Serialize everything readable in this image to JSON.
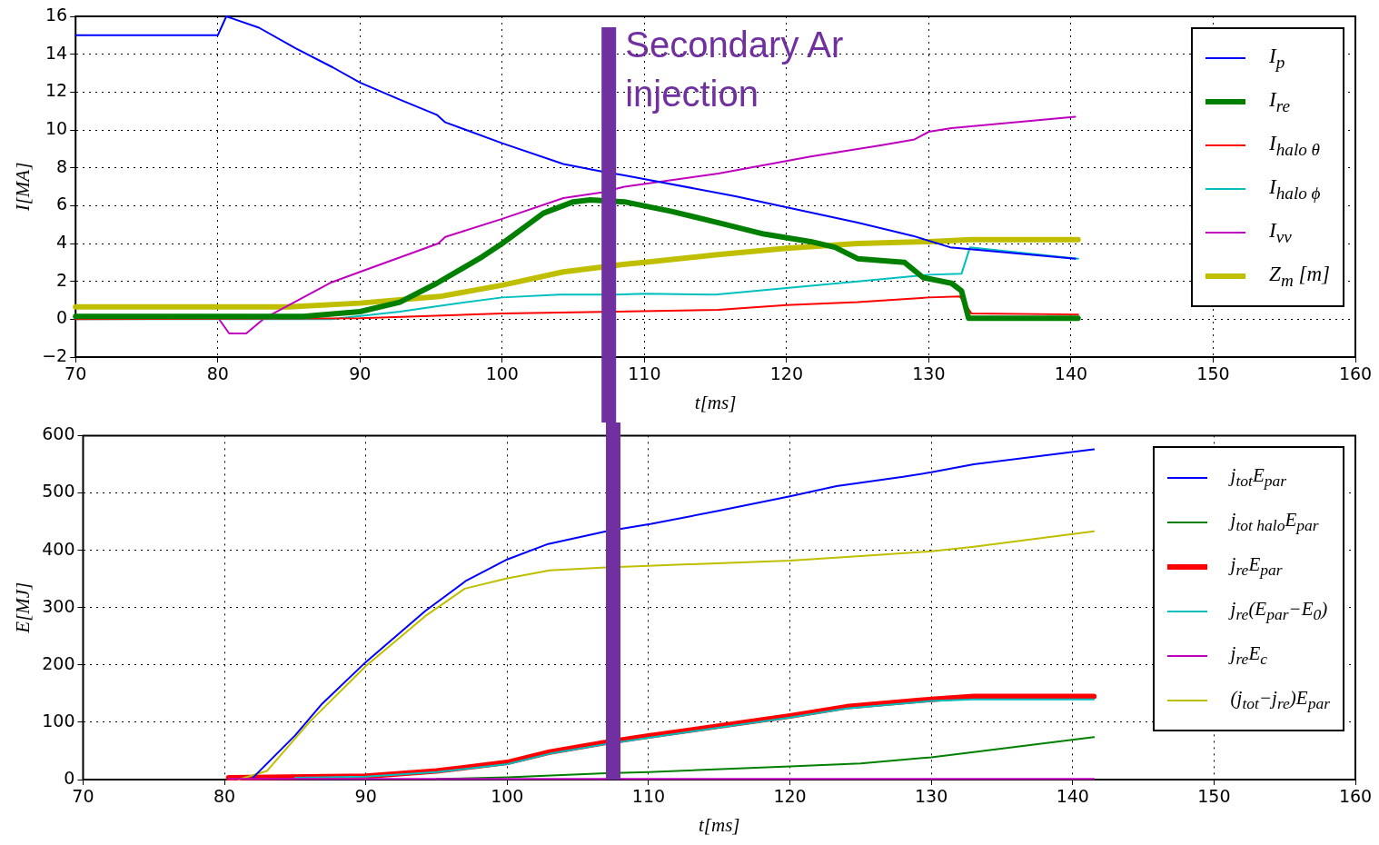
{
  "chart_data": [
    {
      "type": "line",
      "xlabel": "t[ms]",
      "ylabel": "I[MA]",
      "xlim": [
        70,
        160
      ],
      "ylim": [
        -2,
        16
      ],
      "xticks": [
        70,
        80,
        90,
        100,
        110,
        120,
        130,
        140,
        150,
        160
      ],
      "yticks": [
        {
          "value": -2,
          "label": "−2"
        },
        0,
        2,
        4,
        6,
        8,
        10,
        12,
        14,
        16
      ],
      "grid": true,
      "legend": "top right",
      "marker": "none",
      "line_style": "solid",
      "ref_lines": [
        {
          "axis": "x",
          "value": 107.5,
          "label": "Secondary Ar injection",
          "color": "#7030a0"
        }
      ],
      "series": [
        {
          "name": "I$_{p}$",
          "color": "#0000ff",
          "x": [
            70,
            80,
            80.6,
            82.9,
            85.5,
            88.1,
            90,
            92.8,
            95.4,
            96,
            100,
            104.3,
            107,
            108.6,
            116.4,
            125,
            128.9,
            131.5,
            140.3
          ],
          "values": [
            15,
            15,
            16,
            15.4,
            14.3,
            13.3,
            12.5,
            11.6,
            10.8,
            10.4,
            9.3,
            8.2,
            7.8,
            7.6,
            6.5,
            5.1,
            4.4,
            3.8,
            3.2
          ]
        },
        {
          "name": "I$_{re}$",
          "color": "#007f00",
          "x": [
            70,
            86,
            90,
            92.8,
            95.4,
            98.6,
            100,
            102.9,
            105,
            106.2,
            108.6,
            111.9,
            115.2,
            118.4,
            121.7,
            123.4,
            125,
            128.3,
            129.6,
            131.6,
            132.3,
            132.8,
            140.5
          ],
          "values": [
            0.15,
            0.15,
            0.4,
            0.9,
            1.9,
            3.3,
            4,
            5.6,
            6.2,
            6.3,
            6.2,
            5.7,
            5.1,
            4.5,
            4.1,
            3.8,
            3.2,
            3,
            2.2,
            1.9,
            1.5,
            0.05,
            0.05
          ]
        },
        {
          "name": "I$_{halo θ}$",
          "color": "#ff0000",
          "x": [
            70,
            90,
            100,
            108,
            115.2,
            120,
            125,
            130,
            132.2,
            133,
            140.5
          ],
          "values": [
            0,
            0.05,
            0.3,
            0.4,
            0.5,
            0.75,
            0.9,
            1.15,
            1.2,
            0.3,
            0.25
          ]
        },
        {
          "name": "I$_{halo ϕ}$",
          "color": "#00bfbf",
          "x": [
            70,
            88,
            92.8,
            96,
            100,
            104,
            108,
            110,
            115,
            120,
            125,
            130,
            132.3,
            132.9,
            140.5
          ],
          "values": [
            0,
            0,
            0.4,
            0.75,
            1.15,
            1.3,
            1.3,
            1.35,
            1.3,
            1.65,
            2,
            2.35,
            2.4,
            3.8,
            3.2
          ]
        },
        {
          "name": "I$_{vv}$",
          "color": "#bf00bf",
          "x": [
            80,
            80.8,
            82,
            83.3,
            88,
            90,
            95.5,
            96,
            100,
            104.3,
            107,
            108.6,
            115.2,
            121.7,
            126.7,
            129,
            130,
            131.6,
            140.3
          ],
          "values": [
            0.1,
            -0.75,
            -0.75,
            0.06,
            1.95,
            2.5,
            4,
            4.35,
            5.3,
            6.4,
            6.7,
            7,
            7.7,
            8.6,
            9.2,
            9.5,
            9.9,
            10.1,
            10.7
          ]
        },
        {
          "name": "Z$_{m}$ [m]",
          "color": "#bfbf00",
          "x": [
            70,
            85,
            90,
            95.6,
            100,
            104.3,
            108.5,
            110,
            115,
            120,
            125,
            130,
            133,
            140.5
          ],
          "values": [
            0.65,
            0.65,
            0.85,
            1.2,
            1.8,
            2.5,
            2.9,
            3,
            3.4,
            3.75,
            4,
            4.1,
            4.2,
            4.2
          ]
        }
      ]
    },
    {
      "type": "line",
      "xlabel": "t[ms]",
      "ylabel": "E[MJ]",
      "xlim": [
        70,
        160
      ],
      "ylim": [
        0,
        600
      ],
      "xticks": [
        70,
        80,
        90,
        100,
        110,
        120,
        130,
        140,
        150,
        160
      ],
      "yticks": [
        0,
        100,
        200,
        300,
        400,
        500,
        600
      ],
      "grid": true,
      "legend": "top right",
      "marker": "none",
      "line_style": "solid",
      "ref_lines": [
        {
          "axis": "x",
          "value": 107.5,
          "color": "#7030a0"
        }
      ],
      "series": [
        {
          "name": "j$_{tot}$E$_{par}$",
          "color": "#0000ff",
          "x": [
            82,
            85,
            86.9,
            90,
            94.2,
            97.1,
            100,
            102.9,
            107,
            110.2,
            115,
            120,
            123.3,
            128,
            130,
            133,
            141.5
          ],
          "values": [
            3,
            77,
            132,
            205,
            294,
            347,
            384,
            411,
            433,
            446,
            469,
            494,
            512,
            528,
            536,
            550,
            576
          ]
        },
        {
          "name": "j$_{tot halo}$E$_{par}$",
          "color": "#008000",
          "x": [
            95,
            100,
            107,
            110,
            120,
            125,
            130,
            133,
            141.5
          ],
          "values": [
            1,
            4,
            11,
            13,
            23,
            28,
            39,
            48,
            74
          ]
        },
        {
          "name": "j$_{re}$E$_{par}$",
          "color": "#ff0000",
          "x": [
            80.3,
            90,
            95,
            100,
            103,
            107,
            110,
            120,
            124,
            130,
            133,
            141.5
          ],
          "values": [
            3,
            6,
            15,
            30,
            48,
            65,
            76,
            111,
            127,
            140,
            145,
            145
          ]
        },
        {
          "name": "j$_{re}$(E$_{par}$−E$_{0}$)",
          "color": "#00bfbf",
          "x": [
            85,
            90,
            95,
            100,
            103,
            107,
            110,
            120,
            124,
            130,
            133,
            141.5
          ],
          "values": [
            3,
            5,
            13,
            27,
            45,
            62,
            73,
            108,
            124,
            137,
            140,
            140
          ]
        },
        {
          "name": "j$_{re}$E$_{c}$",
          "color": "#bf00bf",
          "x": [
            80.3,
            141.5
          ],
          "values": [
            1,
            1
          ]
        },
        {
          "name": "(j$_{tot}$−j$_{re}$)E$_{par}$",
          "color": "#bfbf00",
          "x": [
            81,
            83,
            86,
            90,
            94.2,
            97,
            100,
            103,
            107,
            110,
            120,
            125,
            130,
            133,
            141.5
          ],
          "values": [
            0,
            15,
            100,
            198,
            285,
            333,
            351,
            365,
            370,
            373,
            382,
            390,
            398,
            406,
            433
          ]
        }
      ]
    }
  ]
}
